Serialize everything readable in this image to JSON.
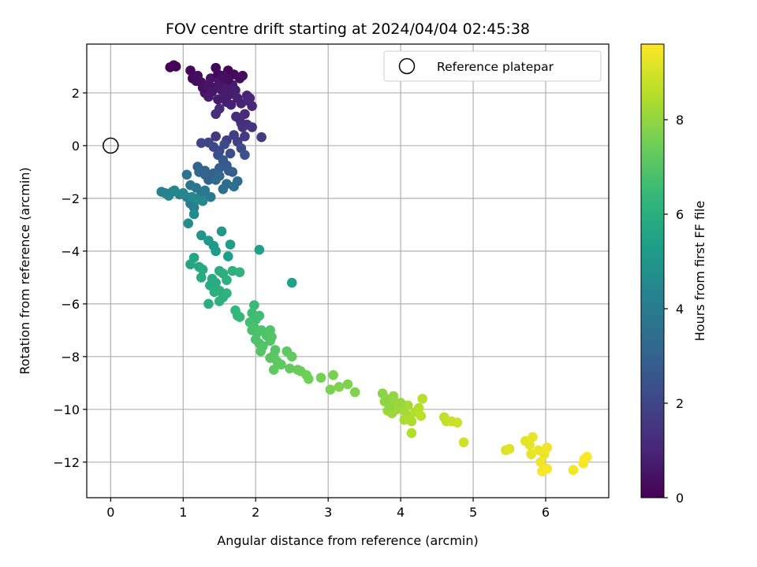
{
  "chart_data": {
    "type": "scatter",
    "title": "FOV centre drift starting at 2024/04/04 02:45:38",
    "xlabel": "Angular distance from reference (arcmin)",
    "ylabel": "Rotation from reference (arcmin)",
    "xlim": [
      -0.33,
      6.87
    ],
    "ylim": [
      -13.35,
      3.85
    ],
    "xticks": [
      0,
      1,
      2,
      3,
      4,
      5,
      6
    ],
    "yticks": [
      -12,
      -10,
      -8,
      -6,
      -4,
      -2,
      0,
      2
    ],
    "grid": true,
    "legend": {
      "placement": "top-right",
      "entries": [
        "Reference platepar"
      ]
    },
    "reference": {
      "x": 0,
      "y": 0,
      "label": "Reference platepar"
    },
    "colorbar": {
      "label": "Hours from first FF file",
      "colormap": "viridis",
      "range": [
        0,
        9.6
      ],
      "ticks": [
        0,
        2,
        4,
        6,
        8
      ]
    },
    "colormap_stops": [
      "#440154",
      "#482878",
      "#3e4989",
      "#31688e",
      "#26828e",
      "#1f9e89",
      "#35b779",
      "#6ece58",
      "#b5de2b",
      "#fde725"
    ],
    "points": [
      [
        0.82,
        2.97,
        0.05
      ],
      [
        0.87,
        3.05,
        0.08
      ],
      [
        0.9,
        3.0,
        0.1
      ],
      [
        1.1,
        2.85,
        0.2
      ],
      [
        1.13,
        2.55,
        0.25
      ],
      [
        1.18,
        2.45,
        0.3
      ],
      [
        1.2,
        2.65,
        0.32
      ],
      [
        1.25,
        2.4,
        0.35
      ],
      [
        1.27,
        2.2,
        0.4
      ],
      [
        1.3,
        2.0,
        0.45
      ],
      [
        1.34,
        2.3,
        0.5
      ],
      [
        1.38,
        2.55,
        0.52
      ],
      [
        1.42,
        2.2,
        0.55
      ],
      [
        1.45,
        2.95,
        0.12
      ],
      [
        1.48,
        2.7,
        0.2
      ],
      [
        1.5,
        2.4,
        0.6
      ],
      [
        1.53,
        2.1,
        0.65
      ],
      [
        1.56,
        2.5,
        0.5
      ],
      [
        1.6,
        2.2,
        0.7
      ],
      [
        1.62,
        2.85,
        0.15
      ],
      [
        1.65,
        1.95,
        0.75
      ],
      [
        1.68,
        2.3,
        0.7
      ],
      [
        1.7,
        2.7,
        0.22
      ],
      [
        1.72,
        2.1,
        0.8
      ],
      [
        1.75,
        1.8,
        0.85
      ],
      [
        1.78,
        2.55,
        0.3
      ],
      [
        1.8,
        1.6,
        0.9
      ],
      [
        1.82,
        2.65,
        0.28
      ],
      [
        1.62,
        2.5,
        0.35
      ],
      [
        1.55,
        2.65,
        0.4
      ],
      [
        1.4,
        2.05,
        0.6
      ],
      [
        1.35,
        1.85,
        0.65
      ],
      [
        1.48,
        1.75,
        0.7
      ],
      [
        1.6,
        1.65,
        0.8
      ],
      [
        1.66,
        1.55,
        0.85
      ],
      [
        1.58,
        1.9,
        0.75
      ],
      [
        1.88,
        1.9,
        0.95
      ],
      [
        1.9,
        1.7,
        1.0
      ],
      [
        1.95,
        1.5,
        1.1
      ],
      [
        1.92,
        1.8,
        1.05
      ],
      [
        1.85,
        1.2,
        1.15
      ],
      [
        1.8,
        0.85,
        1.3
      ],
      [
        1.78,
        1.0,
        1.25
      ],
      [
        1.82,
        0.7,
        1.35
      ],
      [
        1.88,
        0.8,
        1.4
      ],
      [
        1.95,
        0.7,
        1.45
      ],
      [
        1.73,
        1.1,
        1.2
      ],
      [
        1.45,
        1.2,
        1.3
      ],
      [
        1.5,
        1.4,
        1.2
      ],
      [
        1.45,
        0.35,
        1.6
      ],
      [
        1.6,
        0.2,
        1.7
      ],
      [
        1.7,
        0.4,
        1.75
      ],
      [
        1.75,
        0.15,
        1.8
      ],
      [
        1.85,
        0.35,
        1.65
      ],
      [
        2.08,
        0.32,
        1.7
      ],
      [
        1.25,
        0.1,
        2.0
      ],
      [
        1.35,
        0.12,
        2.05
      ],
      [
        1.42,
        -0.05,
        2.1
      ],
      [
        1.5,
        -0.2,
        2.15
      ],
      [
        1.57,
        0.05,
        2.2
      ],
      [
        1.65,
        -0.3,
        2.3
      ],
      [
        1.8,
        -0.1,
        2.2
      ],
      [
        1.85,
        -0.35,
        2.4
      ],
      [
        1.48,
        -0.35,
        2.35
      ],
      [
        1.55,
        -0.55,
        2.6
      ],
      [
        1.6,
        -0.75,
        2.7
      ],
      [
        1.63,
        -0.95,
        2.8
      ],
      [
        1.68,
        -1.0,
        2.9
      ],
      [
        1.5,
        -0.85,
        2.85
      ],
      [
        1.42,
        -1.05,
        2.95
      ],
      [
        1.35,
        -1.3,
        3.0
      ],
      [
        1.3,
        -1.1,
        3.05
      ],
      [
        1.2,
        -0.8,
        3.1
      ],
      [
        1.22,
        -1.0,
        3.15
      ],
      [
        1.3,
        -0.95,
        3.1
      ],
      [
        1.45,
        -1.3,
        3.2
      ],
      [
        1.5,
        -1.15,
        3.25
      ],
      [
        1.6,
        -1.45,
        3.35
      ],
      [
        1.75,
        -1.35,
        3.4
      ],
      [
        1.7,
        -1.55,
        3.45
      ],
      [
        1.05,
        -1.1,
        3.6
      ],
      [
        1.1,
        -1.5,
        3.7
      ],
      [
        1.18,
        -1.6,
        3.75
      ],
      [
        1.25,
        -1.85,
        3.8
      ],
      [
        1.3,
        -1.7,
        3.85
      ],
      [
        1.38,
        -1.95,
        3.9
      ],
      [
        1.2,
        -2.0,
        3.95
      ],
      [
        1.1,
        -2.2,
        4.0
      ],
      [
        1.15,
        -2.35,
        4.05
      ],
      [
        1.05,
        -1.95,
        4.1
      ],
      [
        0.95,
        -1.85,
        4.15
      ],
      [
        0.85,
        -1.75,
        4.2
      ],
      [
        0.75,
        -1.8,
        4.25
      ],
      [
        0.7,
        -1.75,
        4.3
      ],
      [
        0.8,
        -1.9,
        4.35
      ],
      [
        0.88,
        -1.7,
        4.4
      ],
      [
        1.0,
        -1.8,
        4.45
      ],
      [
        1.12,
        -1.95,
        4.5
      ],
      [
        1.2,
        -2.05,
        4.55
      ],
      [
        1.27,
        -2.1,
        4.5
      ],
      [
        1.55,
        -1.65,
        3.5
      ],
      [
        1.15,
        -2.6,
        4.6
      ],
      [
        1.07,
        -2.95,
        4.7
      ],
      [
        1.25,
        -3.4,
        5.0
      ],
      [
        1.35,
        -3.6,
        5.1
      ],
      [
        1.42,
        -3.8,
        5.15
      ],
      [
        1.45,
        -4.0,
        5.2
      ],
      [
        1.53,
        -3.25,
        5.1
      ],
      [
        1.65,
        -3.75,
        5.25
      ],
      [
        1.62,
        -4.2,
        5.35
      ],
      [
        2.05,
        -3.95,
        5.4
      ],
      [
        2.5,
        -5.2,
        5.45
      ],
      [
        1.1,
        -4.5,
        5.6
      ],
      [
        1.15,
        -4.25,
        5.65
      ],
      [
        1.22,
        -4.6,
        5.7
      ],
      [
        1.27,
        -4.7,
        5.75
      ],
      [
        1.25,
        -5.0,
        5.8
      ],
      [
        1.4,
        -5.05,
        5.85
      ],
      [
        1.45,
        -5.2,
        5.9
      ],
      [
        1.5,
        -4.75,
        5.95
      ],
      [
        1.55,
        -4.85,
        6.0
      ],
      [
        1.6,
        -5.1,
        6.05
      ],
      [
        1.68,
        -4.75,
        6.1
      ],
      [
        1.78,
        -4.8,
        6.15
      ],
      [
        1.37,
        -5.3,
        5.9
      ],
      [
        1.43,
        -5.55,
        6.0
      ],
      [
        1.5,
        -5.5,
        6.05
      ],
      [
        1.55,
        -5.75,
        6.1
      ],
      [
        1.6,
        -5.6,
        6.15
      ],
      [
        1.35,
        -6.0,
        6.0
      ],
      [
        1.5,
        -5.9,
        6.1
      ],
      [
        1.72,
        -6.25,
        6.3
      ],
      [
        1.75,
        -6.45,
        6.35
      ],
      [
        1.78,
        -6.5,
        6.4
      ],
      [
        1.98,
        -6.05,
        6.5
      ],
      [
        1.95,
        -6.35,
        6.55
      ],
      [
        2.0,
        -6.6,
        6.6
      ],
      [
        2.05,
        -6.45,
        6.65
      ],
      [
        1.92,
        -6.7,
        6.7
      ],
      [
        1.98,
        -6.9,
        6.75
      ],
      [
        2.02,
        -7.1,
        6.8
      ],
      [
        2.08,
        -7.0,
        6.85
      ],
      [
        2.15,
        -7.2,
        6.9
      ],
      [
        2.2,
        -7.0,
        6.95
      ],
      [
        2.22,
        -7.25,
        7.0
      ],
      [
        1.95,
        -7.0,
        6.8
      ],
      [
        2.0,
        -7.35,
        6.85
      ],
      [
        2.05,
        -7.5,
        6.9
      ],
      [
        2.1,
        -7.6,
        6.95
      ],
      [
        2.07,
        -7.8,
        7.0
      ],
      [
        2.2,
        -7.4,
        7.0
      ],
      [
        2.27,
        -7.75,
        7.05
      ],
      [
        2.25,
        -7.95,
        7.1
      ],
      [
        2.2,
        -8.05,
        7.1
      ],
      [
        2.3,
        -8.2,
        7.15
      ],
      [
        2.35,
        -8.3,
        7.2
      ],
      [
        2.25,
        -8.5,
        7.2
      ],
      [
        2.43,
        -7.8,
        7.2
      ],
      [
        2.5,
        -8.0,
        7.25
      ],
      [
        2.47,
        -8.45,
        7.3
      ],
      [
        2.58,
        -8.5,
        7.35
      ],
      [
        2.62,
        -8.55,
        7.4
      ],
      [
        2.7,
        -8.7,
        7.45
      ],
      [
        2.73,
        -8.85,
        7.5
      ],
      [
        2.9,
        -8.8,
        7.55
      ],
      [
        3.07,
        -8.7,
        7.6
      ],
      [
        3.03,
        -9.25,
        7.65
      ],
      [
        3.15,
        -9.15,
        7.7
      ],
      [
        3.27,
        -9.05,
        7.7
      ],
      [
        3.37,
        -9.35,
        7.75
      ],
      [
        3.75,
        -9.4,
        7.85
      ],
      [
        3.8,
        -9.6,
        7.9
      ],
      [
        3.85,
        -9.75,
        7.95
      ],
      [
        3.9,
        -9.5,
        8.0
      ],
      [
        3.93,
        -9.8,
        8.05
      ],
      [
        3.95,
        -10.0,
        8.1
      ],
      [
        3.88,
        -10.15,
        8.15
      ],
      [
        3.82,
        -10.05,
        8.2
      ],
      [
        3.98,
        -9.9,
        8.2
      ],
      [
        4.05,
        -10.05,
        8.25
      ],
      [
        4.1,
        -9.85,
        8.3
      ],
      [
        4.12,
        -10.25,
        8.35
      ],
      [
        4.05,
        -10.4,
        8.4
      ],
      [
        4.15,
        -10.45,
        8.45
      ],
      [
        4.2,
        -10.1,
        8.5
      ],
      [
        4.25,
        -9.95,
        8.55
      ],
      [
        4.28,
        -10.25,
        8.6
      ],
      [
        4.3,
        -9.6,
        8.55
      ],
      [
        4.15,
        -10.9,
        8.5
      ],
      [
        4.0,
        -9.75,
        8.1
      ],
      [
        3.85,
        -9.9,
        8.0
      ],
      [
        3.78,
        -9.7,
        7.95
      ],
      [
        4.6,
        -10.3,
        8.7
      ],
      [
        4.63,
        -10.45,
        8.75
      ],
      [
        4.7,
        -10.45,
        8.8
      ],
      [
        4.78,
        -10.5,
        8.85
      ],
      [
        4.87,
        -11.25,
        8.9
      ],
      [
        5.45,
        -11.55,
        9.1
      ],
      [
        5.5,
        -11.5,
        9.15
      ],
      [
        5.72,
        -11.2,
        9.2
      ],
      [
        5.78,
        -11.35,
        9.25
      ],
      [
        5.82,
        -11.05,
        9.3
      ],
      [
        5.8,
        -11.7,
        9.3
      ],
      [
        5.9,
        -11.55,
        9.35
      ],
      [
        5.98,
        -11.7,
        9.35
      ],
      [
        6.02,
        -11.45,
        9.4
      ],
      [
        5.93,
        -12.0,
        9.4
      ],
      [
        5.97,
        -12.3,
        9.45
      ],
      [
        6.02,
        -12.25,
        9.5
      ],
      [
        6.38,
        -12.3,
        9.45
      ],
      [
        6.52,
        -12.05,
        9.5
      ],
      [
        6.57,
        -11.8,
        9.55
      ],
      [
        6.53,
        -11.9,
        9.55
      ],
      [
        5.95,
        -12.35,
        9.5
      ]
    ]
  }
}
